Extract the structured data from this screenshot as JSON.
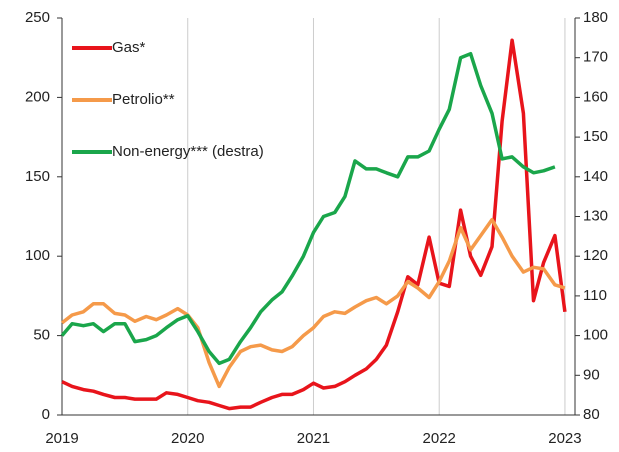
{
  "chart_data": {
    "type": "line",
    "x": [
      2019,
      2019.08,
      2019.17,
      2019.25,
      2019.33,
      2019.42,
      2019.5,
      2019.58,
      2019.67,
      2019.75,
      2019.83,
      2019.92,
      2020,
      2020.08,
      2020.17,
      2020.25,
      2020.33,
      2020.42,
      2020.5,
      2020.58,
      2020.67,
      2020.75,
      2020.83,
      2020.92,
      2021,
      2021.08,
      2021.17,
      2021.25,
      2021.33,
      2021.42,
      2021.5,
      2021.58,
      2021.67,
      2021.75,
      2021.83,
      2021.92,
      2022,
      2022.08,
      2022.17,
      2022.25,
      2022.33,
      2022.42,
      2022.5,
      2022.58,
      2022.67,
      2022.75,
      2022.83,
      2022.92,
      2023
    ],
    "series": [
      {
        "name": "Gas*",
        "color": "#e8141b",
        "values": [
          21,
          18,
          16,
          15,
          13,
          11,
          11,
          10,
          10,
          10,
          14,
          13,
          11,
          9,
          8,
          6,
          4,
          5,
          5,
          8,
          11,
          13,
          13,
          16,
          20,
          17,
          18,
          21,
          25,
          29,
          35,
          44,
          65,
          87,
          82,
          112,
          83,
          81,
          129,
          100,
          88,
          106,
          185,
          236,
          190,
          72,
          96,
          113,
          65
        ]
      },
      {
        "name": "Petrolio**",
        "color": "#f59a4a",
        "values": [
          58,
          63,
          65,
          70,
          70,
          64,
          63,
          59,
          62,
          60,
          63,
          67,
          63,
          55,
          33,
          18,
          30,
          40,
          43,
          44,
          41,
          40,
          43,
          50,
          55,
          62,
          65,
          64,
          68,
          72,
          74,
          70,
          75,
          84,
          80,
          74,
          84,
          97,
          118,
          104,
          113,
          123,
          112,
          100,
          90,
          93,
          92,
          82,
          80
        ]
      },
      {
        "name": "Non-energy*** (destra)",
        "color": "#1aa64b",
        "axis": "y2",
        "values": [
          100,
          103,
          102.5,
          103,
          101,
          103,
          103,
          98.5,
          99,
          100,
          102,
          104,
          105,
          101,
          96,
          93,
          94,
          98.5,
          102,
          106,
          109,
          111,
          115,
          120,
          126,
          130,
          131,
          135,
          144,
          142,
          142,
          141,
          140,
          145,
          145,
          146.5,
          152,
          157,
          170,
          171,
          163,
          156,
          144.5,
          145,
          142.5,
          141,
          141.5,
          142.5,
          null
        ]
      }
    ],
    "xlim": [
      2019,
      2023.08
    ],
    "xticks": [
      2019,
      2020,
      2021,
      2022,
      2023
    ],
    "ylim": [
      0,
      250
    ],
    "yticks": [
      0,
      50,
      100,
      150,
      200,
      250
    ],
    "y2lim": [
      80,
      180
    ],
    "y2ticks": [
      80,
      90,
      100,
      110,
      120,
      130,
      140,
      150,
      160,
      170,
      180
    ],
    "grid": true,
    "legend": "upper-left"
  }
}
